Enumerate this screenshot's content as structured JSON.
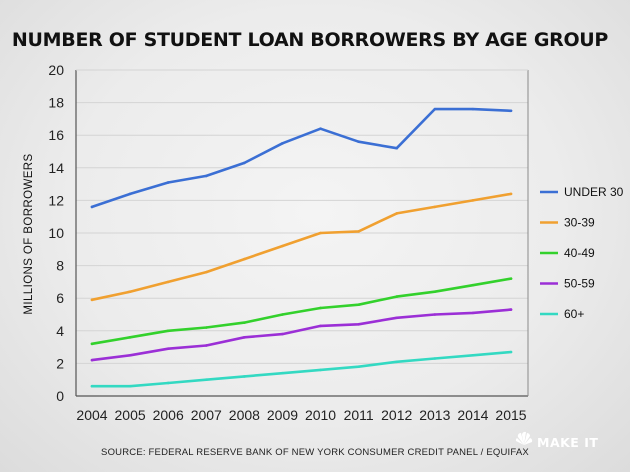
{
  "chart_data": {
    "type": "line",
    "title": "NUMBER OF STUDENT LOAN BORROWERS BY AGE GROUP",
    "ylabel": "MILLIONS OF BORROWERS",
    "xlabel": "",
    "ylim": [
      0,
      20
    ],
    "yticks": [
      "0",
      "2",
      "4",
      "6",
      "8",
      "10",
      "12",
      "14",
      "16",
      "18",
      "20"
    ],
    "grid": true,
    "legend_position": "right",
    "categories": [
      "2004",
      "2005",
      "2006",
      "2007",
      "2008",
      "2009",
      "2010",
      "2011",
      "2012",
      "2013",
      "2014",
      "2015"
    ],
    "series": [
      {
        "name": "UNDER 30",
        "color": "#3b6fd4",
        "values": [
          11.6,
          12.4,
          13.1,
          13.5,
          14.3,
          15.5,
          16.4,
          15.6,
          15.2,
          17.6,
          17.6,
          17.5
        ]
      },
      {
        "name": "30-39",
        "color": "#f0a030",
        "values": [
          5.9,
          6.4,
          7.0,
          7.6,
          8.4,
          9.2,
          10.0,
          10.1,
          11.2,
          11.6,
          12.0,
          12.4
        ]
      },
      {
        "name": "40-49",
        "color": "#33d12c",
        "values": [
          3.2,
          3.6,
          4.0,
          4.2,
          4.5,
          5.0,
          5.4,
          5.6,
          6.1,
          6.4,
          6.8,
          7.2
        ]
      },
      {
        "name": "50-59",
        "color": "#9b2fd6",
        "values": [
          2.2,
          2.5,
          2.9,
          3.1,
          3.6,
          3.8,
          4.3,
          4.4,
          4.8,
          5.0,
          5.1,
          5.3
        ]
      },
      {
        "name": "60+",
        "color": "#33d9c2",
        "values": [
          0.6,
          0.6,
          0.8,
          1.0,
          1.2,
          1.4,
          1.6,
          1.8,
          2.1,
          2.3,
          2.5,
          2.7
        ]
      }
    ],
    "source": "SOURCE: FEDERAL RESERVE BANK OF NEW YORK CONSUMER CREDIT PANEL / EQUIFAX"
  },
  "brand": {
    "label": "MAKE IT",
    "logo_icon": "peacock-icon"
  }
}
